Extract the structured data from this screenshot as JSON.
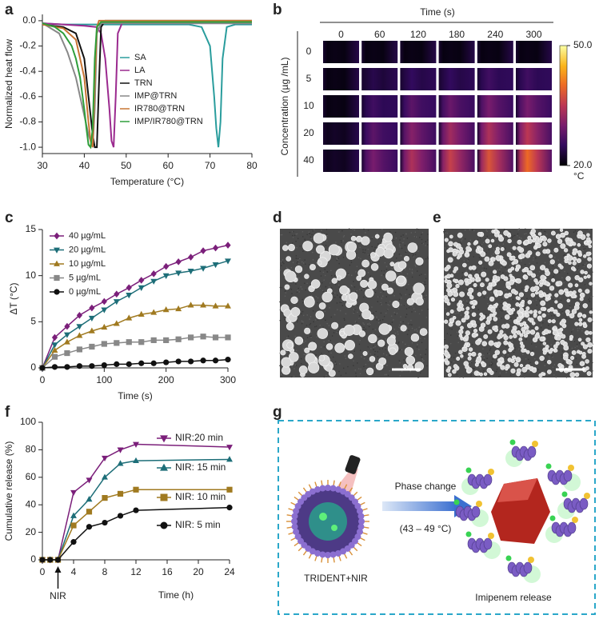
{
  "chart_data": [
    {
      "type": "line",
      "panel": "a",
      "xlabel": "Temperature (°C)",
      "ylabel": "Normalized heat flow",
      "xlim": [
        30,
        80
      ],
      "xticks": [
        30,
        40,
        50,
        60,
        70,
        80
      ],
      "ylim": [
        -1.05,
        0.05
      ],
      "yticks": [
        {
          "value": 0,
          "label": "0.0"
        },
        -0.2,
        -0.4,
        -0.6,
        -0.8,
        {
          "value": -1,
          "label": "-1.0"
        }
      ],
      "legend": "center",
      "series": [
        {
          "name": "SA",
          "color": "#2a9d9d",
          "x": [
            30,
            35,
            40,
            50,
            60,
            65,
            68,
            70,
            71,
            71.5,
            72,
            72.5,
            73,
            74,
            76,
            80
          ],
          "values": [
            -0.02,
            -0.03,
            -0.03,
            -0.03,
            -0.03,
            -0.03,
            -0.05,
            -0.2,
            -0.6,
            -0.85,
            -1.0,
            -0.8,
            -0.3,
            -0.05,
            -0.03,
            -0.03
          ]
        },
        {
          "name": "LA",
          "color": "#9b2a8f",
          "x": [
            30,
            35,
            40,
            43,
            44,
            45,
            46,
            46.5,
            47,
            47.5,
            48,
            49,
            55,
            80
          ],
          "values": [
            -0.02,
            -0.03,
            -0.04,
            -0.05,
            -0.1,
            -0.3,
            -0.7,
            -0.95,
            -1.0,
            -0.6,
            -0.1,
            -0.02,
            -0.02,
            -0.02
          ]
        },
        {
          "name": "TRN",
          "color": "#111111",
          "x": [
            30,
            35,
            38,
            40,
            41,
            42,
            42.5,
            43,
            43.5,
            44,
            45,
            80
          ],
          "values": [
            -0.03,
            -0.05,
            -0.1,
            -0.3,
            -0.6,
            -0.9,
            -1.0,
            -1.0,
            -0.5,
            -0.05,
            0,
            0
          ]
        },
        {
          "name": "IMP@TRN",
          "color": "#888888",
          "x": [
            30,
            34,
            36,
            38,
            39,
            40,
            41,
            42,
            42.5,
            43,
            44,
            80
          ],
          "values": [
            -0.02,
            -0.1,
            -0.25,
            -0.45,
            -0.6,
            -0.75,
            -0.9,
            -1.0,
            -0.7,
            -0.1,
            -0.02,
            -0.02
          ]
        },
        {
          "name": "IR780@TRN",
          "color": "#c87533",
          "x": [
            30,
            35,
            38,
            40,
            41,
            41.5,
            42,
            42.5,
            43,
            43.5,
            80
          ],
          "values": [
            -0.03,
            -0.06,
            -0.15,
            -0.45,
            -0.8,
            -0.95,
            -1.0,
            -0.5,
            -0.05,
            0,
            0
          ]
        },
        {
          "name": "IMP/IR780@TRN",
          "color": "#2e9e3a",
          "x": [
            30,
            33,
            35,
            37,
            38,
            39,
            40,
            40.5,
            41,
            41.5,
            42,
            42.5,
            43,
            44,
            80
          ],
          "values": [
            -0.02,
            -0.05,
            -0.1,
            -0.2,
            -0.3,
            -0.45,
            -0.7,
            -0.85,
            -0.98,
            -1.0,
            -0.85,
            -0.3,
            -0.05,
            -0.01,
            -0.01
          ]
        }
      ]
    },
    {
      "type": "heatmap",
      "panel": "b",
      "xlabel": "Time (s)",
      "ylabel": "Concentration (µg /mL)",
      "columns": [
        "0",
        "60",
        "120",
        "180",
        "240",
        "300"
      ],
      "rows": [
        "0",
        "5",
        "10",
        "20",
        "40"
      ],
      "values": [
        [
          21,
          21,
          21,
          21,
          21,
          21
        ],
        [
          21,
          24,
          25,
          25,
          26,
          26
        ],
        [
          21,
          26,
          28,
          29,
          30,
          30
        ],
        [
          22,
          28,
          31,
          33,
          34,
          35
        ],
        [
          22,
          30,
          34,
          36,
          38,
          40
        ]
      ],
      "colorbar": {
        "lim": [
          20,
          50
        ],
        "ticks": [
          {
            "value": 50,
            "label": "50.0"
          },
          {
            "value": 20,
            "label": "20.0"
          }
        ],
        "unit": "°C"
      }
    },
    {
      "type": "line",
      "panel": "c",
      "xlabel": "Time (s)",
      "ylabel": "ΔT (°C)",
      "x": [
        0,
        20,
        40,
        60,
        80,
        100,
        120,
        140,
        160,
        180,
        200,
        220,
        240,
        260,
        280,
        300
      ],
      "xlim": [
        0,
        300
      ],
      "xticks": [
        0,
        100,
        200,
        300
      ],
      "ylim": [
        0,
        15
      ],
      "yticks": [
        0,
        5,
        10,
        15
      ],
      "legend": "upper left",
      "series": [
        {
          "name": "40 µg/mL",
          "color": "#7b1f7a",
          "marker": "diamond",
          "values": [
            0,
            3.3,
            4.5,
            5.7,
            6.5,
            7.2,
            8,
            8.7,
            9.5,
            10.2,
            11,
            11.5,
            12,
            12.7,
            13,
            13.3
          ]
        },
        {
          "name": "20 µg/mL",
          "color": "#1d6e78",
          "marker": "triangle-down",
          "values": [
            0,
            2.5,
            3.6,
            4.5,
            5.4,
            6.3,
            7.2,
            7.9,
            8.7,
            9.4,
            10,
            10.3,
            10.5,
            10.8,
            11.2,
            11.6
          ]
        },
        {
          "name": "10 µg/mL",
          "color": "#a07a20",
          "marker": "triangle-up",
          "values": [
            0,
            1.9,
            2.8,
            3.5,
            4,
            4.4,
            4.8,
            5.4,
            5.8,
            6,
            6.3,
            6.4,
            6.8,
            6.8,
            6.7,
            6.7
          ]
        },
        {
          "name": "5 µg/mL",
          "color": "#888888",
          "marker": "square",
          "values": [
            0,
            1.2,
            1.6,
            2,
            2.3,
            2.6,
            2.7,
            2.8,
            2.8,
            3,
            3,
            3.1,
            3.3,
            3.4,
            3.3,
            3.3
          ]
        },
        {
          "name": "0 µg/mL",
          "color": "#111111",
          "marker": "circle",
          "values": [
            0,
            0.1,
            0.1,
            0.2,
            0.2,
            0.3,
            0.4,
            0.4,
            0.5,
            0.5,
            0.6,
            0.7,
            0.7,
            0.8,
            0.8,
            0.9
          ]
        }
      ]
    },
    {
      "type": "line",
      "panel": "f",
      "xlabel": "Time (h)",
      "ylabel": "Cumulative release (%)",
      "x": [
        0,
        1,
        2,
        4,
        6,
        8,
        10,
        12,
        24
      ],
      "xlim": [
        0,
        24
      ],
      "xticks": [
        0,
        4,
        8,
        12,
        16,
        20,
        24
      ],
      "ylim": [
        0,
        100
      ],
      "yticks": [
        0,
        20,
        40,
        60,
        80,
        100
      ],
      "legend": "right",
      "annotations": [
        {
          "text": "NIR",
          "x": 2
        }
      ],
      "series": [
        {
          "name": "NIR:20 min",
          "color": "#7b1f7a",
          "marker": "triangle-down",
          "values": [
            0,
            0,
            0,
            49,
            58,
            74,
            80,
            84,
            82
          ]
        },
        {
          "name": "NIR: 15 min",
          "color": "#1d6e78",
          "marker": "triangle-up",
          "values": [
            0,
            0,
            0,
            32,
            44,
            60,
            70,
            72,
            73
          ]
        },
        {
          "name": "NIR: 10 min",
          "color": "#a07a20",
          "marker": "square",
          "values": [
            0,
            0,
            0,
            25,
            35,
            45,
            48,
            51,
            51
          ]
        },
        {
          "name": "NIR: 5 min",
          "color": "#111111",
          "marker": "circle",
          "values": [
            0,
            0,
            0,
            13,
            24,
            27,
            32,
            36,
            38
          ]
        }
      ]
    }
  ],
  "images": [
    {
      "panel": "d"
    },
    {
      "panel": "e"
    }
  ],
  "diagram": {
    "panel": "g",
    "process": "Phase change",
    "condition": "(43 – 49 °C)",
    "before": "TRIDENT+NIR",
    "after": "Imipenem release"
  }
}
